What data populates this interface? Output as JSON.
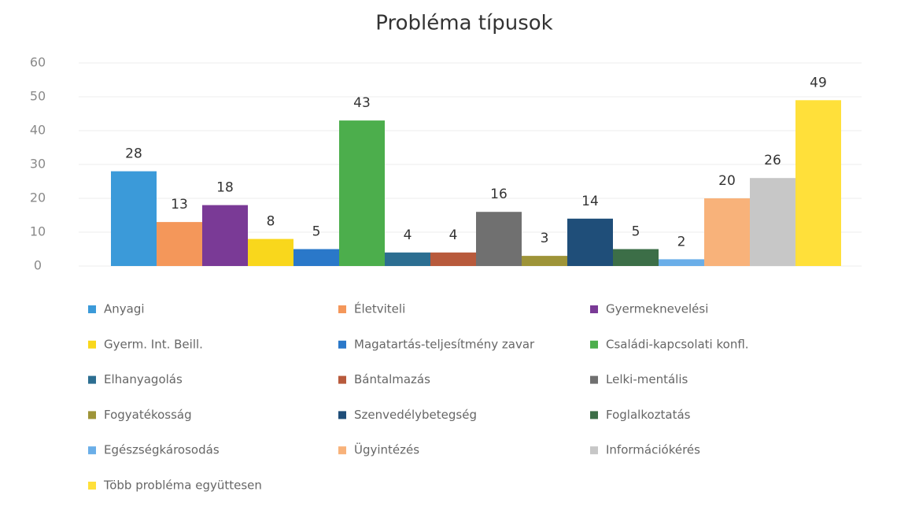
{
  "chart_data": {
    "type": "bar",
    "title": "Probléma típusok",
    "categories": [
      "Anyagi",
      "Életviteli",
      "Gyermeknevelési",
      "Gyerm. Int. Beill.",
      "Magatartás-teljesítmény zavar",
      "Családi-kapcsolati konfl.",
      "Elhanyagolás",
      "Bántalmazás",
      "Lelki-mentális",
      "Fogyatékosság",
      "Szenvedélybetegség",
      "Foglalkoztatás",
      "Egészségkárosodás",
      "Ügyintézés",
      "Információkérés",
      "Több probléma együttesen"
    ],
    "values": [
      28,
      13,
      18,
      8,
      5,
      43,
      4,
      4,
      16,
      3,
      14,
      5,
      2,
      20,
      26,
      49
    ],
    "colors": [
      "#3b9ad9",
      "#f4975a",
      "#7a3a96",
      "#f9d71c",
      "#2a78c9",
      "#4cae4c",
      "#2c6e91",
      "#b85a3c",
      "#707070",
      "#9e9438",
      "#1f4e79",
      "#3c6e47",
      "#6aaee8",
      "#f8b27a",
      "#c7c7c7",
      "#ffe03a"
    ],
    "ylim": [
      0,
      60
    ],
    "yticks": [
      0,
      10,
      20,
      30,
      40,
      50,
      60
    ],
    "grid": true,
    "legend": "bottom"
  }
}
